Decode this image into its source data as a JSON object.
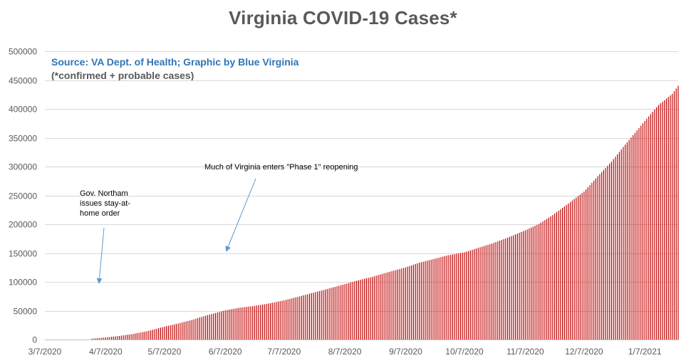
{
  "chart_data": {
    "type": "bar",
    "title": "Virginia COVID-19 Cases*",
    "xlabel": "",
    "ylabel": "",
    "ylim": [
      0,
      500000
    ],
    "yticks": [
      0,
      50000,
      100000,
      150000,
      200000,
      250000,
      300000,
      350000,
      400000,
      450000,
      500000
    ],
    "xrange": [
      "2020-03-07",
      "2021-01-24"
    ],
    "xtick_labels": [
      "3/7/2020",
      "4/7/2020",
      "5/7/2020",
      "6/7/2020",
      "7/7/2020",
      "8/7/2020",
      "9/7/2020",
      "10/7/2020",
      "11/7/2020",
      "12/7/2020",
      "1/7/2021"
    ],
    "grid": true,
    "bar_color": "#c00000",
    "annotations": [
      {
        "text": "Gov. Northam issues stay-at-home order",
        "date": "2020-03-30"
      },
      {
        "text": "Much of Virginia enters \"Phase 1\" reopening",
        "date": "2020-05-15"
      }
    ],
    "source_note": "Source: VA Dept. of Health; Graphic by Blue Virginia",
    "source_note2": "(*confirmed + probable cases)",
    "series": [
      {
        "points": [
          [
            "2020-03-07",
            0
          ],
          [
            "2020-03-31",
            1500
          ],
          [
            "2020-04-07",
            3600
          ],
          [
            "2020-04-14",
            6200
          ],
          [
            "2020-04-21",
            9600
          ],
          [
            "2020-04-28",
            14300
          ],
          [
            "2020-05-07",
            22300
          ],
          [
            "2020-05-14",
            27800
          ],
          [
            "2020-05-21",
            33900
          ],
          [
            "2020-05-28",
            41400
          ],
          [
            "2020-06-07",
            50600
          ],
          [
            "2020-06-14",
            55000
          ],
          [
            "2020-06-21",
            57900
          ],
          [
            "2020-06-28",
            61700
          ],
          [
            "2020-07-07",
            67900
          ],
          [
            "2020-07-14",
            74000
          ],
          [
            "2020-07-21",
            80400
          ],
          [
            "2020-07-28",
            86700
          ],
          [
            "2020-08-07",
            96000
          ],
          [
            "2020-08-14",
            102900
          ],
          [
            "2020-08-21",
            108700
          ],
          [
            "2020-08-28",
            115700
          ],
          [
            "2020-09-07",
            125100
          ],
          [
            "2020-09-14",
            133300
          ],
          [
            "2020-09-21",
            139300
          ],
          [
            "2020-09-28",
            145600
          ],
          [
            "2020-10-07",
            151300
          ],
          [
            "2020-10-14",
            158900
          ],
          [
            "2020-10-21",
            166400
          ],
          [
            "2020-10-28",
            175200
          ],
          [
            "2020-11-07",
            189300
          ],
          [
            "2020-11-14",
            200400
          ],
          [
            "2020-11-21",
            215800
          ],
          [
            "2020-11-28",
            233400
          ],
          [
            "2020-12-07",
            256600
          ],
          [
            "2020-12-14",
            283200
          ],
          [
            "2020-12-21",
            308600
          ],
          [
            "2020-12-28",
            338000
          ],
          [
            "2021-01-07",
            379000
          ],
          [
            "2021-01-14",
            407000
          ],
          [
            "2021-01-21",
            426000
          ],
          [
            "2021-01-24",
            440000
          ]
        ]
      }
    ]
  }
}
